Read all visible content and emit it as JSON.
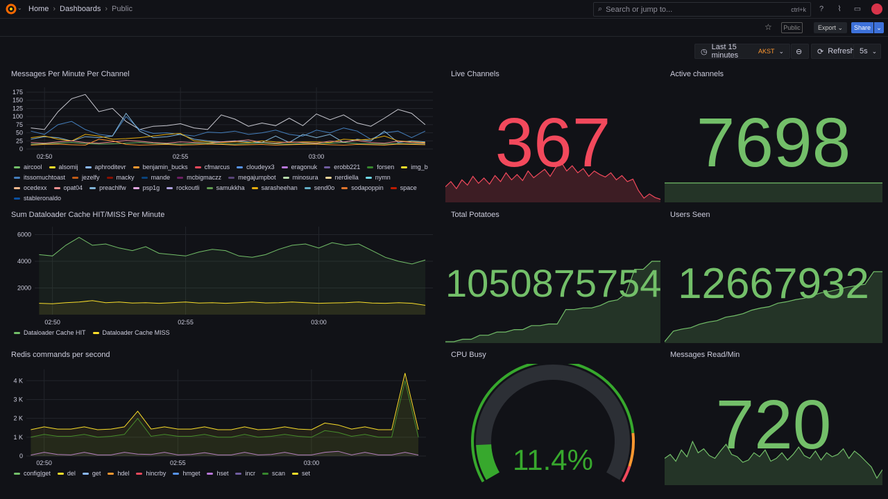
{
  "header": {
    "breadcrumbs": [
      "Home",
      "Dashboards",
      "Public"
    ],
    "search_placeholder": "Search or jump to...",
    "search_shortcut": "ctrl+k",
    "icons": [
      "grafana-logo",
      "help-icon",
      "rss-icon",
      "monitor-icon",
      "avatar"
    ]
  },
  "toolbar": {
    "public_badge": "Public",
    "export_label": "Export",
    "share_label": "Share",
    "time_range": "Last 15 minutes",
    "timezone": "AKST",
    "refresh_label": "Refresh",
    "refresh_interval": "5s"
  },
  "colors": {
    "background": "#111217",
    "green": "#73BF69",
    "red": "#F2495C",
    "yellow": "#FADE2A",
    "orange": "#FF9830",
    "accent": "#3D71D9"
  },
  "panels": {
    "messages": {
      "title": "Messages Per Minute Per Channel"
    },
    "cache": {
      "title": "Sum Dataloader Cache HIT/MISS Per Minute"
    },
    "redis": {
      "title": "Redis commands per second"
    },
    "live": {
      "title": "Live Channels",
      "value": "367",
      "color": "#F2495C"
    },
    "active": {
      "title": "Active channels",
      "value": "7698",
      "color": "#73BF69"
    },
    "potatoes": {
      "title": "Total Potatoes",
      "value": "1050875754",
      "color": "#73BF69"
    },
    "users": {
      "title": "Users Seen",
      "value": "12667932",
      "color": "#73BF69"
    },
    "cpu": {
      "title": "CPU Busy",
      "value": "11.4%",
      "percent": 11.4,
      "thresholds": [
        {
          "from": 0,
          "color": "#37872D"
        },
        {
          "from": 85,
          "color": "#FF9830"
        },
        {
          "from": 95,
          "color": "#F2495C"
        }
      ]
    },
    "reads": {
      "title": "Messages Read/Min",
      "value": "720",
      "color": "#73BF69"
    }
  },
  "chart_data": [
    {
      "id": "messages",
      "type": "line",
      "xlim": [
        "02:49:20",
        "03:04:17"
      ],
      "xticks": [
        "02:50",
        "02:55",
        "03:00"
      ],
      "ylim": [
        0,
        190
      ],
      "yticks": [
        "0",
        "25",
        "50",
        "75",
        "100",
        "125",
        "150",
        "175"
      ],
      "grid": true,
      "times": [
        "02:49:30",
        "02:50:00",
        "02:50:30",
        "02:51:00",
        "02:51:30",
        "02:52:00",
        "02:52:30",
        "02:53:00",
        "02:53:30",
        "02:54:00",
        "02:54:30",
        "02:55:00",
        "02:55:30",
        "02:56:00",
        "02:56:30",
        "02:57:00",
        "02:57:30",
        "02:58:00",
        "02:58:30",
        "02:59:00",
        "02:59:30",
        "03:00:00",
        "03:00:30",
        "03:01:00",
        "03:01:30",
        "03:02:00",
        "03:02:30",
        "03:03:00",
        "03:03:30",
        "03:04:00"
      ],
      "legend": [
        {
          "name": "aircool",
          "color": "#73BF69"
        },
        {
          "name": "alsomij",
          "color": "#FADE2A"
        },
        {
          "name": "aphroditevr",
          "color": "#8AB8FF"
        },
        {
          "name": "benjamin_bucks",
          "color": "#FF9830"
        },
        {
          "name": "cfmarcus",
          "color": "#F2495C"
        },
        {
          "name": "cloudeyx3",
          "color": "#5794F2"
        },
        {
          "name": "eragonuk",
          "color": "#B877D9"
        },
        {
          "name": "erobb221",
          "color": "#705DA0"
        },
        {
          "name": "forsen",
          "color": "#37872D"
        },
        {
          "name": "img_b",
          "color": "#FADE2A"
        },
        {
          "name": "itssomuchtoast",
          "color": "#447EBC"
        },
        {
          "name": "jezelfy",
          "color": "#C15C17"
        },
        {
          "name": "macky",
          "color": "#890F02"
        },
        {
          "name": "mande",
          "color": "#0A437C"
        },
        {
          "name": "mcbigmaczz",
          "color": "#6D1F62"
        },
        {
          "name": "megajumpbot",
          "color": "#584477"
        },
        {
          "name": "minosura",
          "color": "#B7DBAB"
        },
        {
          "name": "nerdiella",
          "color": "#F4D598"
        },
        {
          "name": "nymn",
          "color": "#70DBED"
        },
        {
          "name": "ocedexx",
          "color": "#F9BA8F"
        },
        {
          "name": "opat04",
          "color": "#F29191"
        },
        {
          "name": "preachlfw",
          "color": "#82B5D8"
        },
        {
          "name": "psp1g",
          "color": "#E5A8E2"
        },
        {
          "name": "rockoutli",
          "color": "#AEA2E0"
        },
        {
          "name": "samukkha",
          "color": "#629E51"
        },
        {
          "name": "sarasheehan",
          "color": "#E5AC0E"
        },
        {
          "name": "send0o",
          "color": "#64B0C8"
        },
        {
          "name": "sodapoppin",
          "color": "#E0752D"
        },
        {
          "name": "space",
          "color": "#BF1B00"
        },
        {
          "name": "stableronaldo",
          "color": "#0A50A1"
        }
      ],
      "series": [
        {
          "color": "#c8c8d0",
          "values": [
            65,
            60,
            115,
            155,
            168,
            115,
            125,
            85,
            60,
            70,
            72,
            78,
            65,
            60,
            105,
            92,
            70,
            80,
            72,
            95,
            72,
            108,
            90,
            105,
            80,
            70,
            95,
            122,
            110,
            75
          ]
        },
        {
          "color": "#447EBC",
          "values": [
            55,
            45,
            75,
            85,
            60,
            45,
            40,
            100,
            60,
            48,
            50,
            45,
            40,
            52,
            50,
            55,
            45,
            50,
            58,
            45,
            40,
            58,
            50,
            65,
            55,
            30,
            50,
            55,
            35,
            55
          ]
        },
        {
          "color": "#82B5D8",
          "values": [
            30,
            38,
            35,
            25,
            38,
            35,
            40,
            110,
            55,
            35,
            38,
            45,
            30,
            25,
            22,
            25,
            22,
            20,
            40,
            20,
            45,
            35,
            45,
            20,
            30,
            25,
            55,
            20,
            25,
            22
          ]
        },
        {
          "color": "#E5AC0E",
          "values": [
            35,
            40,
            30,
            25,
            45,
            40,
            30,
            32,
            35,
            40,
            45,
            48,
            25,
            22,
            20,
            22,
            20,
            25,
            22,
            20,
            22,
            22,
            20,
            30,
            28,
            30,
            40,
            25,
            22,
            20
          ]
        },
        {
          "color": "#F29191",
          "values": [
            20,
            18,
            22,
            25,
            20,
            18,
            22,
            26,
            24,
            20,
            18,
            22,
            20,
            18,
            22,
            24,
            28,
            20,
            18,
            22,
            20,
            18,
            24,
            22,
            26,
            20,
            18,
            24,
            20,
            18
          ]
        },
        {
          "color": "#73BF69",
          "values": [
            15,
            16,
            18,
            20,
            17,
            15,
            16,
            18,
            20,
            17,
            16,
            15,
            17,
            18,
            16,
            15,
            17,
            19,
            16,
            15,
            17,
            16,
            18,
            20,
            17,
            16,
            15,
            17,
            16,
            15
          ]
        },
        {
          "color": "#FF9830",
          "values": [
            12,
            14,
            15,
            13,
            12,
            30,
            25,
            14,
            12,
            13,
            14,
            12,
            13,
            15,
            14,
            12,
            13,
            14,
            12,
            13,
            14,
            15,
            13,
            12,
            14,
            13,
            12,
            15,
            14,
            13
          ]
        }
      ]
    },
    {
      "id": "cache",
      "type": "area",
      "xlim": [
        "02:49:20",
        "03:04:17"
      ],
      "xticks": [
        "02:50",
        "02:55",
        "03:00"
      ],
      "ylim": [
        0,
        6600
      ],
      "yticks": [
        "2000",
        "4000",
        "6000"
      ],
      "grid": true,
      "times": [
        "02:49:30",
        "02:50:00",
        "02:50:30",
        "02:51:00",
        "02:51:30",
        "02:52:00",
        "02:52:30",
        "02:53:00",
        "02:53:30",
        "02:54:00",
        "02:54:30",
        "02:55:00",
        "02:55:30",
        "02:56:00",
        "02:56:30",
        "02:57:00",
        "02:57:30",
        "02:58:00",
        "02:58:30",
        "02:59:00",
        "02:59:30",
        "03:00:00",
        "03:00:30",
        "03:01:00",
        "03:01:30",
        "03:02:00",
        "03:02:30",
        "03:03:00",
        "03:03:30",
        "03:04:00"
      ],
      "series": [
        {
          "name": "Dataloader Cache HIT",
          "color": "#73BF69",
          "values": [
            4500,
            4400,
            5200,
            5800,
            5200,
            5300,
            5000,
            4800,
            5100,
            4600,
            4500,
            4400,
            4700,
            4900,
            4800,
            4400,
            4300,
            4500,
            4900,
            5200,
            5300,
            5000,
            5400,
            5200,
            5300,
            4800,
            4300,
            4000,
            3800,
            4100
          ]
        },
        {
          "name": "Dataloader Cache MISS",
          "color": "#FADE2A",
          "values": [
            850,
            820,
            900,
            950,
            1050,
            900,
            950,
            870,
            900,
            850,
            900,
            950,
            870,
            900,
            850,
            900,
            950,
            880,
            900,
            950,
            900,
            850,
            880,
            900,
            950,
            870,
            850,
            900,
            850,
            700
          ]
        }
      ]
    },
    {
      "id": "redis",
      "type": "area",
      "stacking": "normal",
      "xlim": [
        "02:49:20",
        "03:04:17"
      ],
      "xticks": [
        "02:50",
        "02:55",
        "03:00"
      ],
      "ylim": [
        0,
        4600
      ],
      "yticks": [
        "0",
        "1 K",
        "2 K",
        "3 K",
        "4 K"
      ],
      "grid": true,
      "times": [
        "02:49:30",
        "02:50:00",
        "02:50:30",
        "02:51:00",
        "02:51:30",
        "02:52:00",
        "02:52:30",
        "02:53:00",
        "02:53:30",
        "02:54:00",
        "02:54:30",
        "02:55:00",
        "02:55:30",
        "02:56:00",
        "02:56:30",
        "02:57:00",
        "02:57:30",
        "02:58:00",
        "02:58:30",
        "02:59:00",
        "02:59:30",
        "03:00:00",
        "03:00:30",
        "03:01:00",
        "03:01:30",
        "03:02:00",
        "03:02:30",
        "03:03:00",
        "03:03:30",
        "03:04:00"
      ],
      "series": [
        {
          "name": "config|get",
          "color": "#73BF69"
        },
        {
          "name": "del",
          "color": "#FADE2A"
        },
        {
          "name": "get",
          "color": "#8AB8FF"
        },
        {
          "name": "hdel",
          "color": "#FF9830"
        },
        {
          "name": "hincrby",
          "color": "#F2495C"
        },
        {
          "name": "hmget",
          "color": "#5794F2"
        },
        {
          "name": "hset",
          "color": "#B877D9",
          "values": [
            50,
            200,
            80,
            60,
            200,
            60,
            60,
            200,
            100,
            80,
            200,
            60,
            80,
            180,
            60,
            60,
            200,
            60,
            80,
            200,
            60,
            60,
            200,
            250,
            60,
            200,
            60,
            60,
            200,
            50
          ]
        },
        {
          "name": "incr",
          "color": "#705DA0"
        },
        {
          "name": "scan",
          "color": "#37872D",
          "values": [
            1000,
            1150,
            1050,
            1050,
            1150,
            1000,
            1050,
            1150,
            2000,
            1050,
            1150,
            1050,
            1050,
            1150,
            1000,
            1000,
            1150,
            1000,
            1050,
            1150,
            1050,
            1000,
            1350,
            1250,
            1050,
            1150,
            1000,
            1000,
            4000,
            1000
          ]
        },
        {
          "name": "set",
          "color": "#FADE2A",
          "values": [
            400,
            400,
            380,
            380,
            400,
            400,
            380,
            400,
            380,
            380,
            400,
            380,
            380,
            400,
            400,
            400,
            400,
            400,
            380,
            400,
            380,
            400,
            400,
            400,
            380,
            400,
            400,
            400,
            400,
            400
          ]
        }
      ]
    },
    {
      "id": "live",
      "type": "area",
      "color": "#F2495C",
      "values": [
        40,
        55,
        35,
        60,
        45,
        70,
        50,
        65,
        48,
        72,
        55,
        80,
        60,
        75,
        58,
        85,
        66,
        78,
        90,
        70,
        95,
        110,
        85,
        100,
        80,
        92,
        70,
        85,
        75,
        68,
        80,
        60,
        72,
        55,
        62,
        30,
        8,
        20,
        10,
        5
      ]
    },
    {
      "id": "active",
      "type": "area",
      "color": "#73BF69",
      "values": [
        7698,
        7698,
        7698,
        7698,
        7698,
        7698,
        7698,
        7698,
        7698,
        7698
      ]
    },
    {
      "id": "potatoes",
      "type": "area",
      "color": "#73BF69",
      "values": [
        0,
        0,
        3,
        3,
        8,
        8,
        12,
        12,
        15,
        15,
        20,
        20,
        22,
        22,
        40,
        40,
        42,
        42,
        45,
        50,
        52,
        60,
        90,
        90,
        100,
        100
      ]
    },
    {
      "id": "users",
      "type": "area",
      "color": "#73BF69",
      "values": [
        0,
        15,
        18,
        20,
        25,
        28,
        30,
        35,
        37,
        40,
        45,
        48,
        50,
        55,
        57,
        60,
        62,
        66,
        70,
        72,
        75,
        78,
        80,
        82,
        100,
        100
      ]
    },
    {
      "id": "reads",
      "type": "area",
      "color": "#73BF69",
      "values": [
        45,
        52,
        40,
        60,
        48,
        75,
        55,
        62,
        50,
        45,
        58,
        70,
        52,
        48,
        38,
        42,
        55,
        48,
        60,
        40,
        45,
        55,
        42,
        52,
        65,
        50,
        45,
        58,
        42,
        55,
        48,
        52,
        62,
        45,
        58,
        50,
        40,
        30,
        10,
        25
      ]
    }
  ]
}
